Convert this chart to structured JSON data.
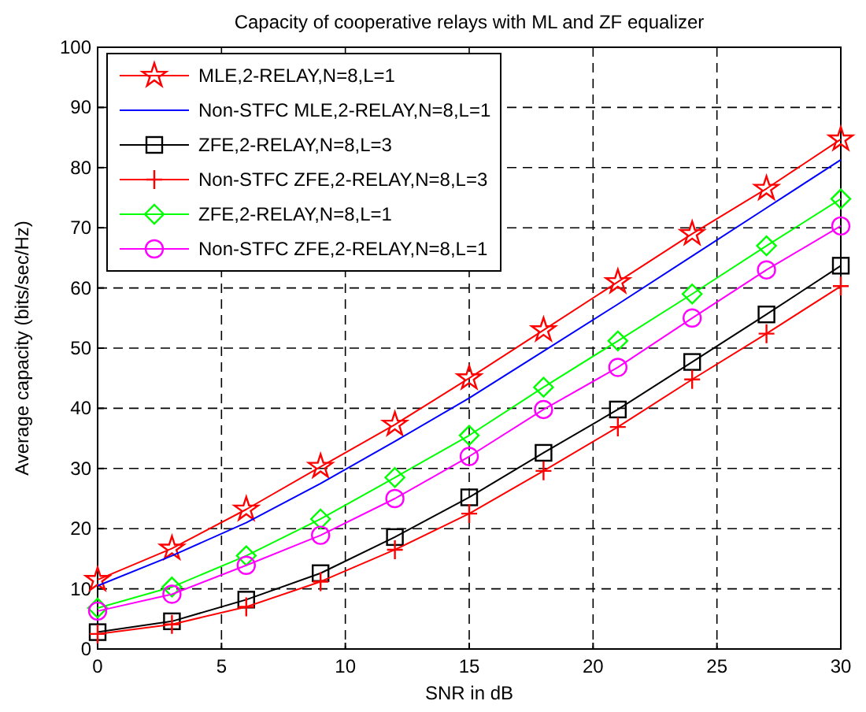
{
  "chart_data": {
    "type": "line",
    "title": "Capacity of cooperative relays with ML and ZF equalizer",
    "xlabel": "SNR in dB",
    "ylabel": "Average capacity (bits/sec/Hz)",
    "x": [
      0,
      3,
      6,
      9,
      12,
      15,
      18,
      21,
      24,
      27,
      30
    ],
    "series": [
      {
        "name": "MLE,2-RELAY,N=8,L=1",
        "color": "#ff0000",
        "marker": "star",
        "values": [
          11.5,
          16.7,
          23.2,
          30.3,
          37.3,
          45,
          53,
          61,
          69,
          76.5,
          84.7
        ]
      },
      {
        "name": "Non-STFC MLE,2-RELAY,N=8,L=1",
        "color": "#0000ff",
        "marker": "none",
        "values": [
          10.5,
          15.5,
          21,
          27.5,
          34.5,
          41.7,
          49.5,
          57.3,
          65.3,
          73.3,
          81.3
        ]
      },
      {
        "name": "ZFE,2-RELAY,N=8,L=3",
        "color": "#000000",
        "marker": "square",
        "values": [
          2.8,
          4.6,
          8.2,
          12.6,
          18.6,
          25.2,
          32.6,
          39.8,
          47.7,
          55.6,
          63.7
        ]
      },
      {
        "name": "Non-STFC ZFE,2-RELAY,N=8,L=3",
        "color": "#ff0000",
        "marker": "cross",
        "values": [
          2.5,
          4.1,
          7,
          11.2,
          16.5,
          22.5,
          29.6,
          36.9,
          44.8,
          52.4,
          60.3
        ]
      },
      {
        "name": "ZFE,2-RELAY,N=8,L=1",
        "color": "#00ff00",
        "marker": "diamond",
        "values": [
          6.8,
          10.3,
          15.5,
          21.6,
          28.5,
          35.5,
          43.5,
          51.2,
          59,
          67,
          74.8
        ]
      },
      {
        "name": "Non-STFC ZFE,2-RELAY,N=8,L=1",
        "color": "#ff00ff",
        "marker": "circle",
        "values": [
          6.3,
          9.1,
          13.9,
          18.9,
          25,
          32,
          39.8,
          46.8,
          55,
          63,
          70.3
        ]
      }
    ],
    "xlim": [
      0,
      30
    ],
    "xticks": [
      0,
      5,
      10,
      15,
      20,
      25,
      30
    ],
    "ylim": [
      0,
      100
    ],
    "yticks": [
      0,
      10,
      20,
      30,
      40,
      50,
      60,
      70,
      80,
      90,
      100
    ],
    "grid": true,
    "legend": "top left",
    "line_style": "solid"
  }
}
